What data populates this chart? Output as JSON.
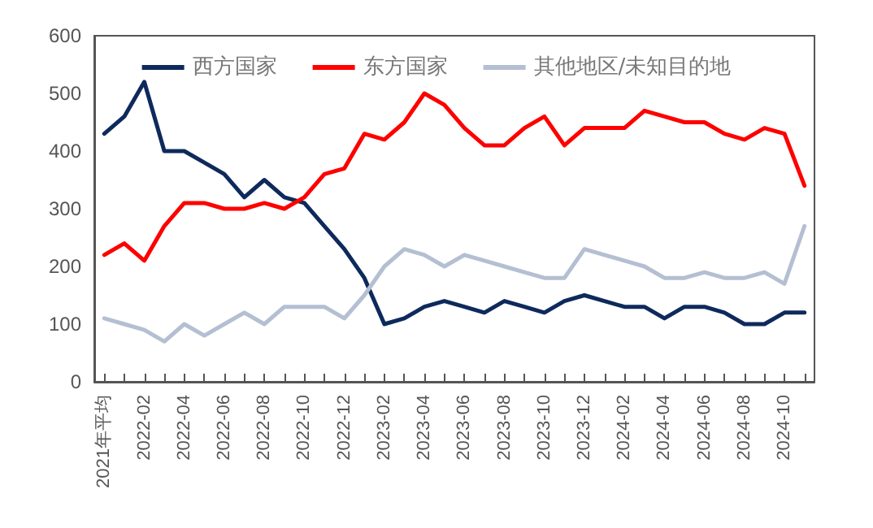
{
  "chart_data": {
    "type": "line",
    "categories": [
      "2021年平均",
      null,
      "2022-02",
      null,
      "2022-04",
      null,
      "2022-06",
      null,
      "2022-08",
      null,
      "2022-10",
      null,
      "2022-12",
      null,
      "2023-02",
      null,
      "2023-04",
      null,
      "2023-06",
      null,
      "2023-08",
      null,
      "2023-10",
      null,
      "2023-12",
      null,
      "2024-02",
      null,
      "2024-04",
      null,
      "2024-06",
      null,
      "2024-08",
      null,
      "2024-10",
      null
    ],
    "series": [
      {
        "name": "西方国家",
        "color": "#0e2a5c",
        "values": [
          430,
          460,
          520,
          400,
          400,
          380,
          360,
          320,
          350,
          320,
          310,
          270,
          230,
          180,
          100,
          110,
          130,
          140,
          130,
          120,
          140,
          130,
          120,
          140,
          150,
          140,
          130,
          130,
          110,
          130,
          130,
          120,
          100,
          100,
          120,
          120
        ]
      },
      {
        "name": "东方国家",
        "color": "#ff0000",
        "values": [
          220,
          240,
          210,
          270,
          310,
          310,
          300,
          300,
          310,
          300,
          320,
          360,
          370,
          430,
          420,
          450,
          500,
          480,
          440,
          410,
          410,
          440,
          460,
          410,
          440,
          440,
          440,
          470,
          460,
          450,
          450,
          430,
          420,
          440,
          430,
          340
        ]
      },
      {
        "name": "其他地区/未知目的地",
        "color": "#b4bfd2",
        "values": [
          110,
          100,
          90,
          70,
          100,
          80,
          100,
          120,
          100,
          130,
          130,
          130,
          110,
          150,
          200,
          230,
          220,
          200,
          220,
          210,
          200,
          190,
          180,
          180,
          230,
          220,
          210,
          200,
          180,
          180,
          190,
          180,
          180,
          190,
          170,
          270
        ]
      }
    ],
    "ylim": [
      0,
      600
    ],
    "yticks": [
      0,
      100,
      200,
      300,
      400,
      500,
      600
    ],
    "grid": false,
    "legend": "top",
    "marker": "none",
    "line_style": "solid"
  }
}
